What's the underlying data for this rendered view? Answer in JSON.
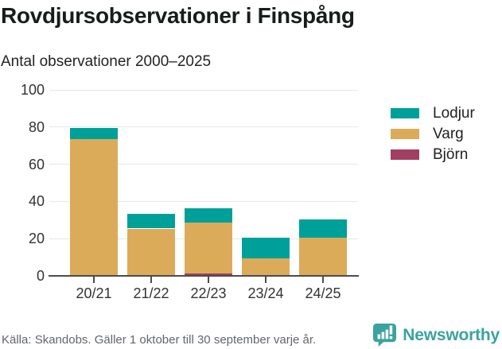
{
  "header": {
    "title": "Rovdjursobservationer i Finspång",
    "subtitle": "Antal observationer 2000–2025"
  },
  "chart_data": {
    "type": "bar",
    "stacked": true,
    "title": "Rovdjursobservationer i Finspång",
    "subtitle": "Antal observationer 2000–2025",
    "categories": [
      "20/21",
      "21/22",
      "22/23",
      "23/24",
      "24/25"
    ],
    "series": [
      {
        "name": "Björn",
        "color": "#a23e5f",
        "values": [
          0,
          0,
          1,
          0,
          0
        ]
      },
      {
        "name": "Varg",
        "color": "#dcab5a",
        "values": [
          73,
          25,
          27,
          9,
          20
        ]
      },
      {
        "name": "Lodjur",
        "color": "#00a09a",
        "values": [
          6,
          8,
          8,
          11,
          10
        ]
      }
    ],
    "totals": [
      79,
      33,
      36,
      20,
      30
    ],
    "legend_order": [
      "Lodjur",
      "Varg",
      "Björn"
    ],
    "legend_position": "right",
    "xlabel": "",
    "ylabel": "",
    "ylim": [
      0,
      100
    ],
    "yticks": [
      0,
      20,
      40,
      60,
      80,
      100
    ],
    "grid": true
  },
  "footer": {
    "source": "Källa: Skandobs. Gäller 1 oktober till 30 september varje år.",
    "brand_name": "Newsworthy"
  },
  "colors": {
    "grid": "#e7e7e7",
    "axis": "#4c4c4c",
    "axis_label": "#333333",
    "legend_label": "#222222",
    "footer_text": "#62666b",
    "brand_teal": "#3aa39f"
  }
}
